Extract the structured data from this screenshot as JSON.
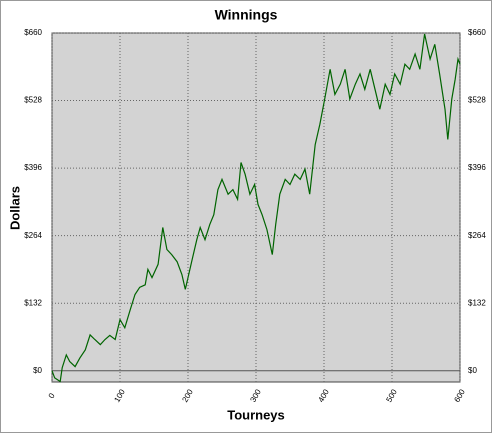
{
  "chart_data": {
    "type": "line",
    "title": "Winnings",
    "x_label": "Tourneys",
    "y_label": "Dollars",
    "x": [
      0,
      4,
      12,
      15,
      21,
      26,
      34,
      41,
      49,
      56,
      63,
      71,
      78,
      85,
      93,
      100,
      107,
      115,
      122,
      129,
      137,
      141,
      147,
      156,
      163,
      169,
      176,
      184,
      191,
      196,
      200,
      206,
      213,
      218,
      225,
      232,
      238,
      244,
      250,
      259,
      266,
      273,
      278,
      284,
      291,
      298,
      303,
      309,
      316,
      324,
      329,
      335,
      343,
      350,
      357,
      365,
      372,
      379,
      387,
      394,
      401,
      409,
      416,
      424,
      431,
      438,
      446,
      453,
      460,
      468,
      475,
      482,
      490,
      497,
      504,
      512,
      519,
      526,
      534,
      541,
      548,
      556,
      563,
      570,
      578,
      582,
      588,
      593,
      597,
      600
    ],
    "series": [
      {
        "name": "Winnings",
        "color": "#006400",
        "values": [
          0,
          -14,
          -21,
          6,
          31,
          18,
          8,
          25,
          41,
          70,
          61,
          51,
          61,
          69,
          61,
          100,
          84,
          119,
          149,
          163,
          168,
          198,
          182,
          208,
          280,
          237,
          227,
          213,
          188,
          159,
          182,
          217,
          256,
          280,
          256,
          286,
          305,
          354,
          374,
          345,
          354,
          335,
          407,
          384,
          345,
          364,
          325,
          305,
          276,
          227,
          286,
          345,
          374,
          364,
          384,
          374,
          394,
          345,
          442,
          482,
          531,
          589,
          540,
          560,
          589,
          531,
          560,
          580,
          550,
          589,
          550,
          511,
          560,
          540,
          580,
          560,
          599,
          589,
          619,
          589,
          658,
          609,
          638,
          580,
          511,
          452,
          531,
          570,
          609,
          599
        ]
      }
    ],
    "xlim": [
      0,
      600
    ],
    "ylim": [
      -22,
      660
    ],
    "xticks": [
      0,
      100,
      200,
      300,
      400,
      500,
      600
    ],
    "yticks": [
      {
        "value": 0,
        "label": "$0"
      },
      {
        "value": 132,
        "label": "$132"
      },
      {
        "value": 264,
        "label": "$264"
      },
      {
        "value": 396,
        "label": "$396"
      },
      {
        "value": 528,
        "label": "$528"
      },
      {
        "value": 660,
        "label": "$660"
      }
    ],
    "grid": true,
    "background": "#d3d3d3"
  }
}
